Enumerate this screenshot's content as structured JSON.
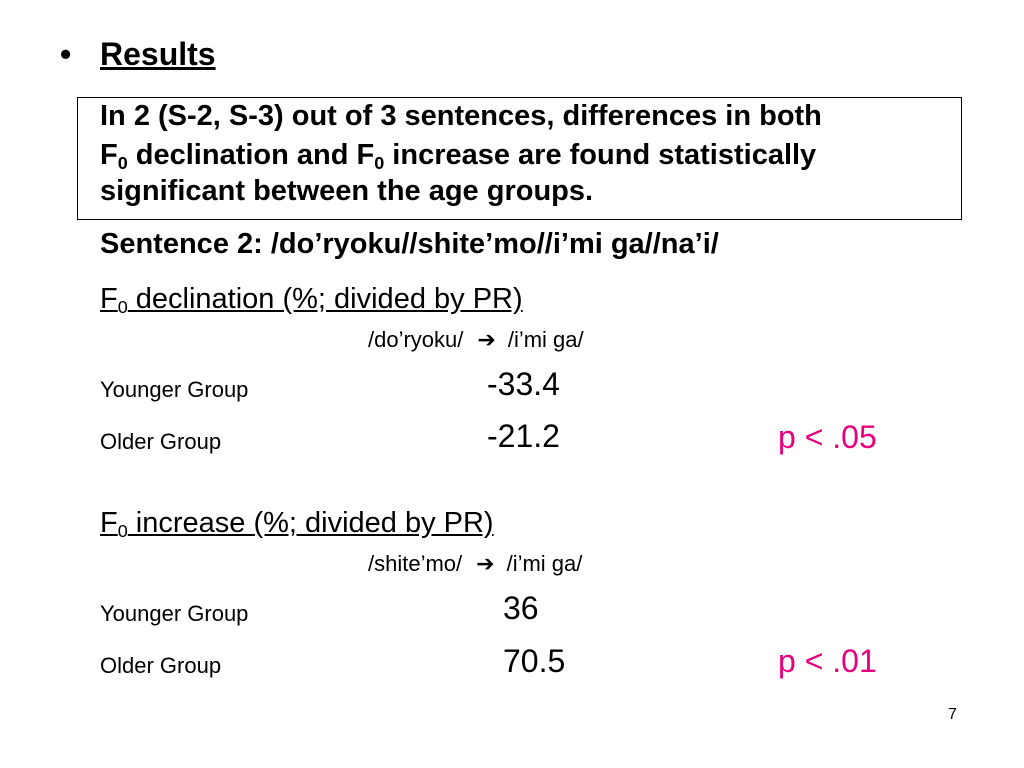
{
  "slide": {
    "bullet": "•",
    "heading": "Results",
    "summary": {
      "line1": "In 2 (S-2, S-3) out of 3 sentences, differences in both",
      "line2": {
        "f": "F",
        "sub": "0",
        "mid": " declination and F",
        "sub2": "0",
        "end": " increase are found statistically"
      },
      "line3": "significant between the age groups."
    },
    "sentence": "Sentence 2: /do’ryoku//shite’mo//i’mi ga//na’i/",
    "declination": {
      "f": "F",
      "sub": "0",
      "title_rest": " declination (%; divided by PR)",
      "from": "/do’ryoku/",
      "arrow": "➔",
      "to": "/i’mi ga/",
      "rows": [
        {
          "group": "Younger Group",
          "value": "-33.4",
          "p": ""
        },
        {
          "group": "Older Group",
          "value": "-21.2",
          "p": "p < .05"
        }
      ]
    },
    "increase": {
      "f": "F",
      "sub": "0",
      "title_rest": " increase (%; divided by PR)",
      "from": "/shite’mo/",
      "arrow": "➔",
      "to": "/i’mi ga/",
      "rows": [
        {
          "group": "Younger Group",
          "value": "36",
          "p": ""
        },
        {
          "group": "Older Group",
          "value": "70.5",
          "p": "p < .01"
        }
      ]
    },
    "page_number": "7",
    "colors": {
      "p_value": "#e6007e"
    }
  }
}
